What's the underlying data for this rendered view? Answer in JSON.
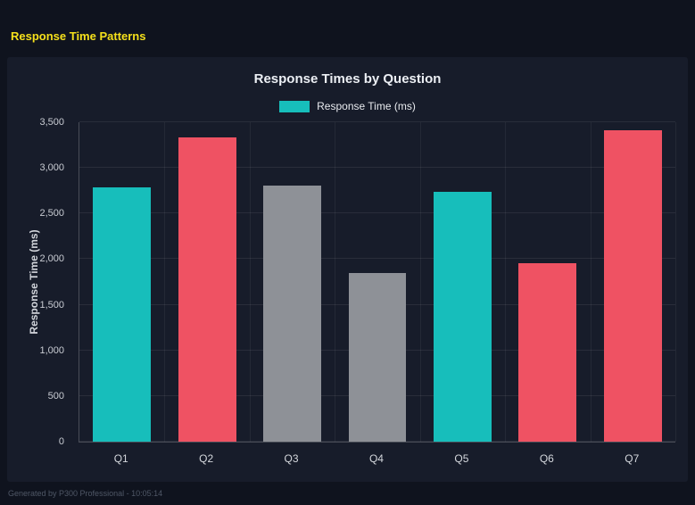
{
  "page": {
    "title": "Response Time Patterns"
  },
  "footer": {
    "text": "Generated by P300 Professional - 10:05:14"
  },
  "chart_data": {
    "type": "bar",
    "title": "Response Times by Question",
    "legend_label": "Response Time (ms)",
    "legend_color": "#17bebb",
    "categories": [
      "Q1",
      "Q2",
      "Q3",
      "Q4",
      "Q5",
      "Q6",
      "Q7"
    ],
    "values": [
      2790,
      3330,
      2810,
      1850,
      2740,
      1960,
      3410
    ],
    "colors": [
      "#17bebb",
      "#ef5263",
      "#8e9197",
      "#8e9197",
      "#17bebb",
      "#ef5263",
      "#ef5263"
    ],
    "ylabel": "Response Time (ms)",
    "ylim": [
      0,
      3500
    ],
    "yticks": [
      0,
      500,
      1000,
      1500,
      2000,
      2500,
      3000,
      3500
    ],
    "grid": true,
    "legend_position": "top"
  }
}
